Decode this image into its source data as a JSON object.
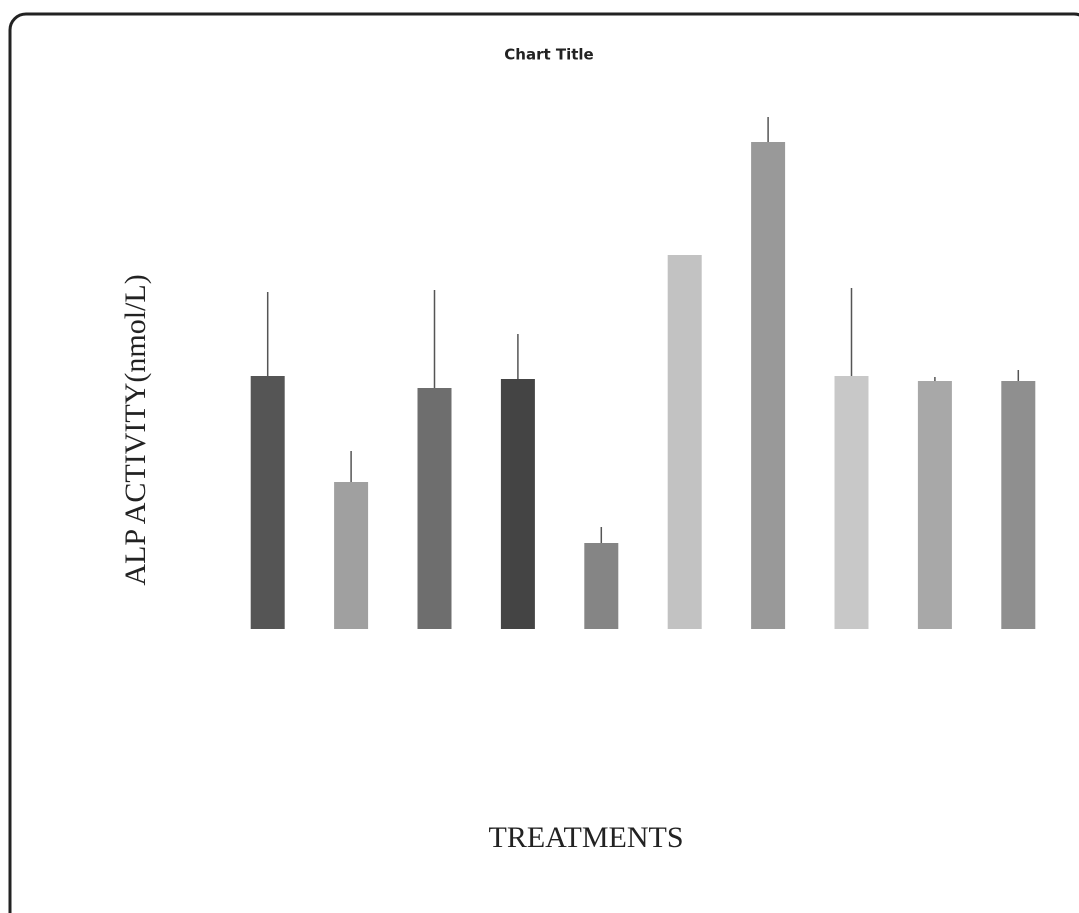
{
  "chart_data": {
    "type": "bar",
    "title": "Chart Title",
    "y_label": "ALP ACTIVITY(nmol/L)",
    "x_label": "TREATMENTS",
    "values": [
      50.6,
      29.4,
      48.2,
      50,
      17.2,
      74.8,
      97.4,
      50.6,
      49.6,
      49.6
    ],
    "errors": [
      16.8,
      6.2,
      19.6,
      9,
      3.2,
      null,
      5,
      17.6,
      0.8,
      2.2
    ],
    "colors": [
      "#555555",
      "#a0a0a0",
      "#6e6e6e",
      "#444444",
      "#858585",
      "#c2c2c2",
      "#999999",
      "#c8c8c8",
      "#a8a8a8",
      "#8f8f8f"
    ],
    "error_color": "#555555",
    "ylim": [
      0,
      100
    ]
  }
}
